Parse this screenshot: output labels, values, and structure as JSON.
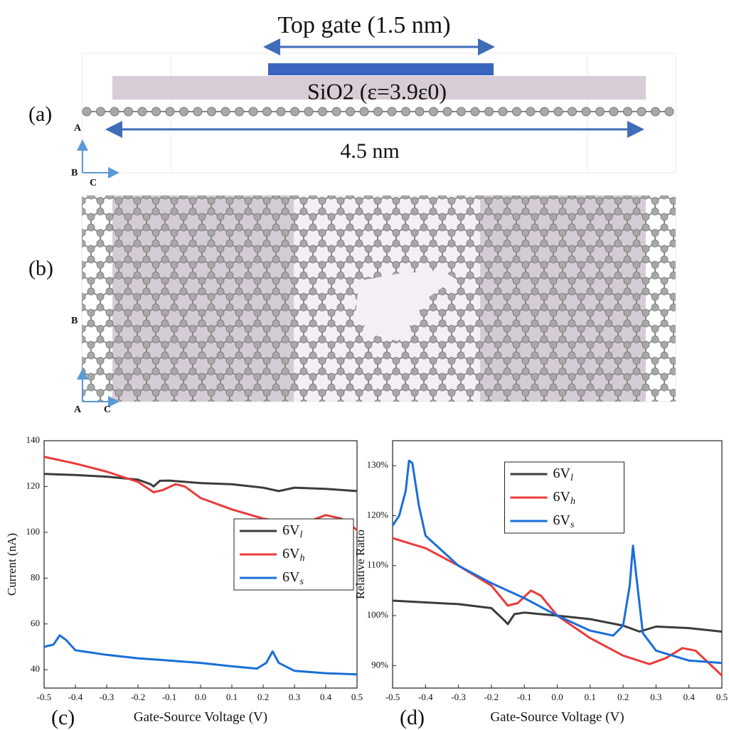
{
  "diagram": {
    "panel_a": {
      "label": "(a)",
      "gate": "Top gate (1.5 nm)",
      "oxide": "SiO2 (ε=3.9ε0)",
      "length": "4.5 nm",
      "axes": [
        "A",
        "B",
        "C"
      ]
    },
    "panel_b": {
      "label": "(b)",
      "axes": [
        "B",
        "A",
        "C"
      ]
    }
  },
  "chart_data": [
    {
      "type": "line",
      "panel_label": "(c)",
      "y_label": "Current (nA)",
      "x_label": "Gate-Source Voltage (V)",
      "xlim": [
        -0.5,
        0.5
      ],
      "ylim": [
        32,
        140
      ],
      "xticks": [
        -0.5,
        -0.4,
        -0.3,
        -0.2,
        -0.1,
        {
          "value": 0,
          "label": "0.0"
        },
        0.1,
        0.2,
        0.3,
        0.4,
        0.5
      ],
      "yticks": [
        40,
        60,
        80,
        100,
        120,
        140
      ],
      "legend": "center right",
      "series": [
        {
          "name": "6Vl",
          "color": "#3c3c3c",
          "x": [
            -0.5,
            -0.4,
            -0.3,
            -0.2,
            -0.16,
            -0.15,
            -0.13,
            -0.1,
            0,
            0.1,
            0.2,
            0.25,
            0.3,
            0.4,
            0.5
          ],
          "values": [
            125.5,
            125,
            124.3,
            123,
            121,
            120,
            122.5,
            122.6,
            121.5,
            121,
            119.5,
            118,
            119.5,
            119,
            118
          ]
        },
        {
          "name": "6Vh",
          "color": "#ea3a3a",
          "x": [
            -0.5,
            -0.4,
            -0.3,
            -0.2,
            -0.15,
            -0.12,
            -0.08,
            -0.05,
            0,
            0.1,
            0.2,
            0.3,
            0.35,
            0.4,
            0.45,
            0.5
          ],
          "values": [
            133,
            130,
            126.5,
            122,
            117.5,
            118.5,
            121,
            120,
            115,
            110,
            106,
            104,
            105,
            107.5,
            106,
            101
          ]
        },
        {
          "name": "6Vs",
          "color": "#1a6ed8",
          "x": [
            -0.5,
            -0.47,
            -0.45,
            -0.43,
            -0.4,
            -0.3,
            -0.2,
            -0.1,
            0,
            0.1,
            0.18,
            0.21,
            0.23,
            0.25,
            0.3,
            0.4,
            0.5
          ],
          "values": [
            50,
            51,
            55,
            53,
            48.5,
            46.5,
            45,
            44,
            43,
            41.5,
            40.5,
            43,
            48,
            43,
            39.5,
            38.5,
            38
          ]
        }
      ]
    },
    {
      "type": "line",
      "panel_label": "(d)",
      "y_label": "Relative Ratio",
      "x_label": "Gate-Source Voltage (V)",
      "xlim": [
        -0.5,
        0.5
      ],
      "ylim": [
        85.5,
        135
      ],
      "xticks": [
        -0.5,
        -0.4,
        -0.3,
        -0.2,
        -0.1,
        {
          "value": 0,
          "label": "0.0"
        },
        0.1,
        0.2,
        0.3,
        0.4,
        0.5
      ],
      "yticks": [
        {
          "value": 90,
          "label": "90%"
        },
        {
          "value": 100,
          "label": "100%"
        },
        {
          "value": 110,
          "label": "110%"
        },
        {
          "value": 120,
          "label": "120%"
        },
        {
          "value": 130,
          "label": "130%"
        }
      ],
      "legend": "upper center",
      "series": [
        {
          "name": "6Vl",
          "color": "#3c3c3c",
          "x": [
            -0.5,
            -0.3,
            -0.2,
            -0.16,
            -0.15,
            -0.13,
            -0.1,
            0,
            0.1,
            0.2,
            0.25,
            0.3,
            0.4,
            0.5
          ],
          "values": [
            103,
            102.3,
            101.5,
            99,
            98.3,
            100.3,
            100.6,
            100,
            99.3,
            98,
            96.8,
            97.8,
            97.5,
            96.8
          ]
        },
        {
          "name": "6Vh",
          "color": "#ea3a3a",
          "x": [
            -0.5,
            -0.4,
            -0.3,
            -0.2,
            -0.15,
            -0.12,
            -0.08,
            -0.05,
            0,
            0.1,
            0.2,
            0.28,
            0.33,
            0.38,
            0.42,
            0.5
          ],
          "values": [
            115.5,
            113.5,
            110,
            106,
            102,
            102.5,
            105,
            104,
            100,
            95.5,
            92,
            90.3,
            91.5,
            93.5,
            93,
            88
          ]
        },
        {
          "name": "6Vs",
          "color": "#1a6ed8",
          "x": [
            -0.5,
            -0.48,
            -0.46,
            -0.45,
            -0.44,
            -0.42,
            -0.4,
            -0.3,
            -0.2,
            -0.1,
            0,
            0.1,
            0.17,
            0.2,
            0.22,
            0.23,
            0.24,
            0.26,
            0.3,
            0.4,
            0.5
          ],
          "values": [
            118,
            120,
            125,
            131,
            130.5,
            122,
            116,
            110,
            106.5,
            103.5,
            100,
            97,
            96,
            98,
            106,
            114,
            108,
            96.5,
            93,
            91,
            90.5
          ]
        }
      ]
    }
  ]
}
